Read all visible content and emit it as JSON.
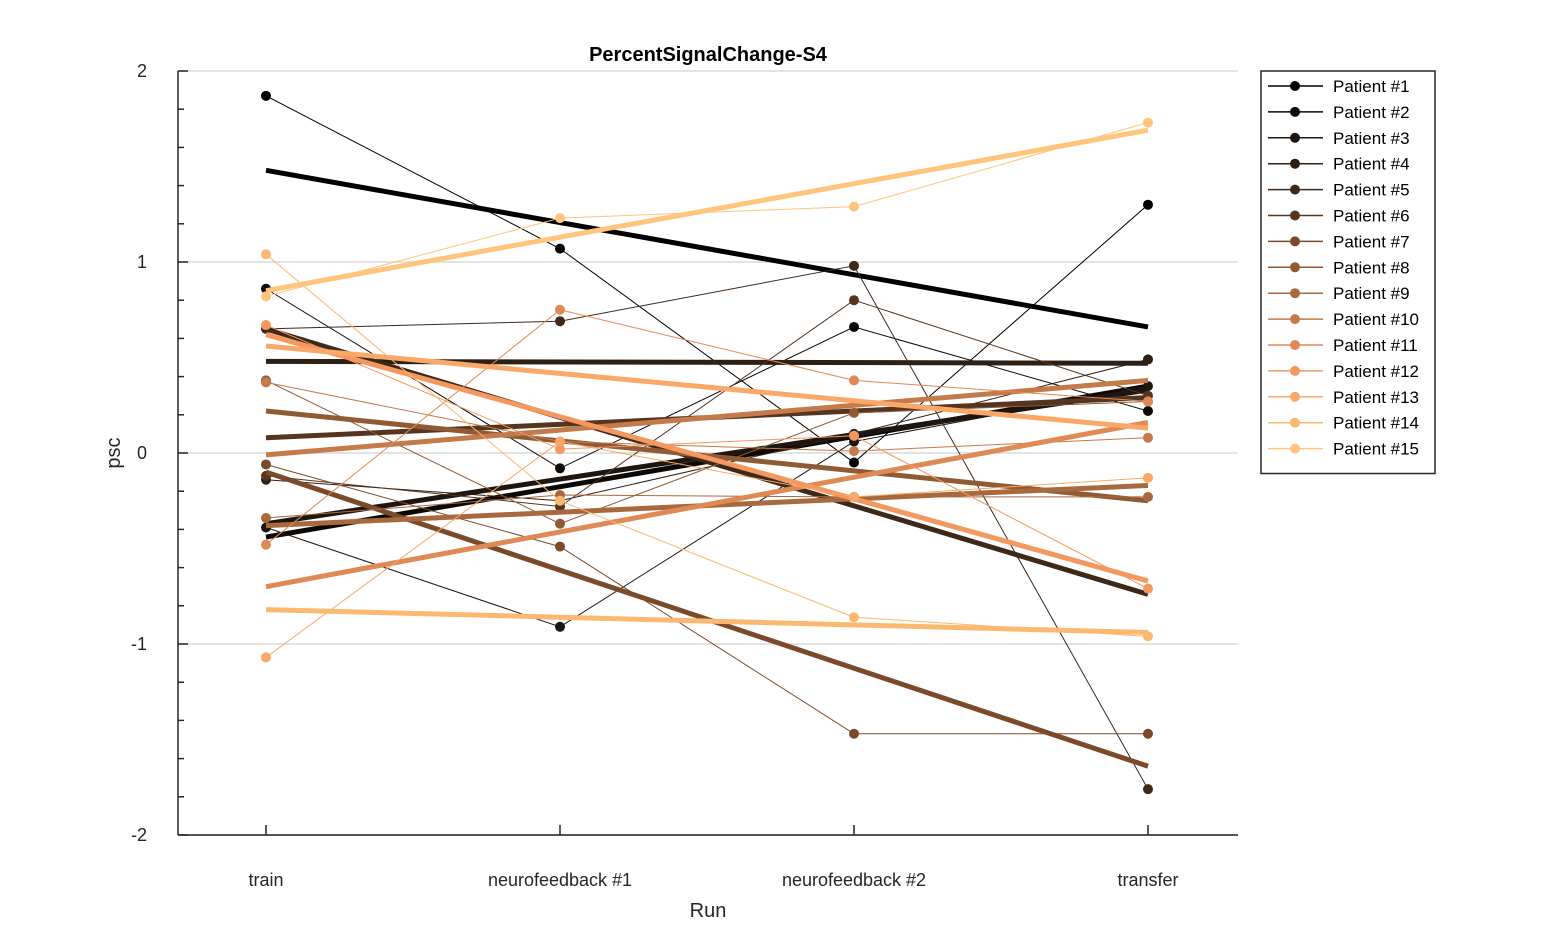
{
  "chart_data": {
    "type": "line",
    "title": "PercentSignalChange-S4",
    "xlabel": "Run",
    "ylabel": "psc",
    "categories": [
      "train",
      "neurofeedback #1",
      "neurofeedback #2",
      "transfer"
    ],
    "ylim": [
      -2,
      2
    ],
    "yticks": [
      -2,
      -1,
      0,
      1,
      2
    ],
    "ytick_labels": [
      "-2",
      "-1",
      "0",
      "1",
      "2"
    ],
    "grid": "horizontal",
    "legend_position": "outside-top-right",
    "series": [
      {
        "name": "Patient #1",
        "color": "#000000",
        "values": [
          1.87,
          1.07,
          -0.05,
          1.3
        ],
        "trend": [
          1.48,
          0.66
        ]
      },
      {
        "name": "Patient #2",
        "color": "#0c0805",
        "values": [
          0.86,
          -0.08,
          0.66,
          0.22
        ],
        "trend": [
          -0.44,
          0.35
        ]
      },
      {
        "name": "Patient #3",
        "color": "#1e150f",
        "values": [
          -0.39,
          -0.91,
          0.06,
          0.35
        ],
        "trend": [
          -0.37,
          0.33
        ]
      },
      {
        "name": "Patient #4",
        "color": "#2e1f14",
        "values": [
          -0.14,
          -0.25,
          0.1,
          0.49
        ],
        "trend": [
          0.48,
          0.47
        ]
      },
      {
        "name": "Patient #5",
        "color": "#3e2919",
        "values": [
          0.65,
          0.69,
          0.98,
          -1.76
        ],
        "trend": [
          0.65,
          -0.74
        ]
      },
      {
        "name": "Patient #6",
        "color": "#55351f",
        "values": [
          -0.12,
          -0.28,
          0.8,
          0.3
        ],
        "trend": [
          0.08,
          0.29
        ]
      },
      {
        "name": "Patient #7",
        "color": "#7a4a2b",
        "values": [
          -0.06,
          -0.49,
          -1.47,
          -1.47
        ],
        "trend": [
          -0.1,
          -1.64
        ]
      },
      {
        "name": "Patient #8",
        "color": "#905a35",
        "values": [
          0.38,
          -0.37,
          0.21,
          0.27
        ],
        "trend": [
          0.22,
          -0.25
        ]
      },
      {
        "name": "Patient #9",
        "color": "#a9693e",
        "values": [
          -0.34,
          -0.22,
          -0.23,
          -0.23
        ],
        "trend": [
          -0.38,
          -0.17
        ]
      },
      {
        "name": "Patient #10",
        "color": "#c47a4a",
        "values": [
          0.37,
          0.06,
          0.01,
          0.08
        ],
        "trend": [
          -0.01,
          0.38
        ]
      },
      {
        "name": "Patient #11",
        "color": "#df8a56",
        "values": [
          -0.48,
          0.75,
          0.38,
          0.27
        ],
        "trend": [
          -0.7,
          0.16
        ]
      },
      {
        "name": "Patient #12",
        "color": "#f49860",
        "values": [
          0.67,
          0.02,
          0.09,
          -0.71
        ],
        "trend": [
          0.62,
          -0.67
        ]
      },
      {
        "name": "Patient #13",
        "color": "#f9a868",
        "values": [
          -1.07,
          0.06,
          -0.23,
          -0.13
        ],
        "trend": [
          0.56,
          0.13
        ]
      },
      {
        "name": "Patient #14",
        "color": "#fbb871",
        "values": [
          1.04,
          -0.25,
          -0.86,
          -0.96
        ],
        "trend": [
          -0.82,
          -0.94
        ]
      },
      {
        "name": "Patient #15",
        "color": "#ffc57c",
        "values": [
          0.82,
          1.23,
          1.29,
          1.73
        ],
        "trend": [
          0.85,
          1.69
        ]
      }
    ]
  }
}
